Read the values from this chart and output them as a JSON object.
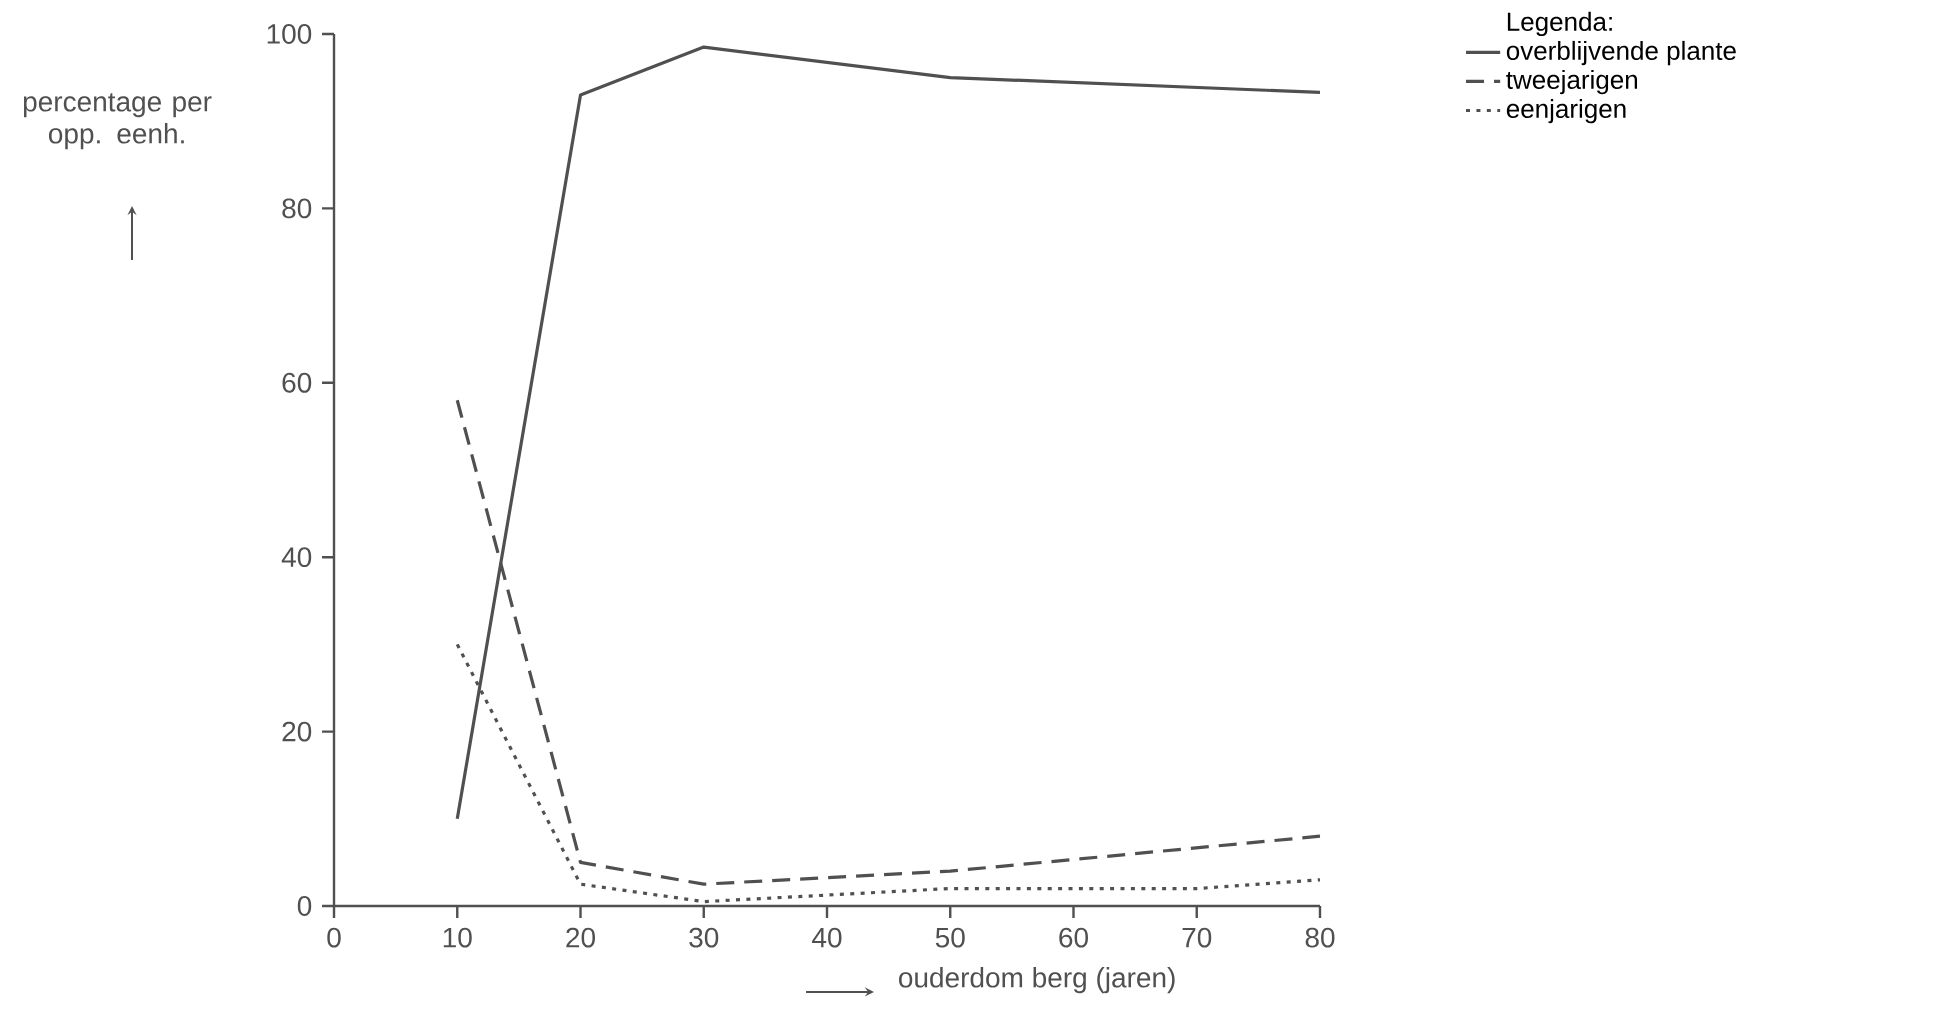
{
  "chart_data": {
    "type": "line",
    "xlabel": "ouderdom berg (jaren)",
    "ylabel": "percentage per opp. eenh.",
    "legend_title": "Legenda:",
    "xlim": [
      0,
      80
    ],
    "ylim": [
      0,
      100
    ],
    "xticks": [
      0,
      10,
      20,
      30,
      40,
      50,
      60,
      70,
      80
    ],
    "yticks": [
      0,
      20,
      40,
      60,
      80,
      100
    ],
    "grid": false,
    "legend": "top right",
    "marker": "none",
    "series": [
      {
        "name": "overblijvende plante",
        "color": "#505050",
        "line_style": "solid",
        "x": [
          10,
          20,
          30,
          50,
          80
        ],
        "values": [
          10,
          93,
          98.5,
          95,
          93.3
        ]
      },
      {
        "name": "tweejarigen",
        "color": "#505050",
        "line_style": "dashed",
        "x": [
          10,
          20,
          30,
          50,
          80
        ],
        "values": [
          58,
          5,
          2.5,
          4,
          8
        ]
      },
      {
        "name": "eenjarigen",
        "color": "#505050",
        "line_style": "dotted",
        "x": [
          10,
          20,
          30,
          50,
          70,
          80
        ],
        "values": [
          30,
          2.5,
          0.5,
          2,
          2,
          3
        ]
      }
    ]
  }
}
